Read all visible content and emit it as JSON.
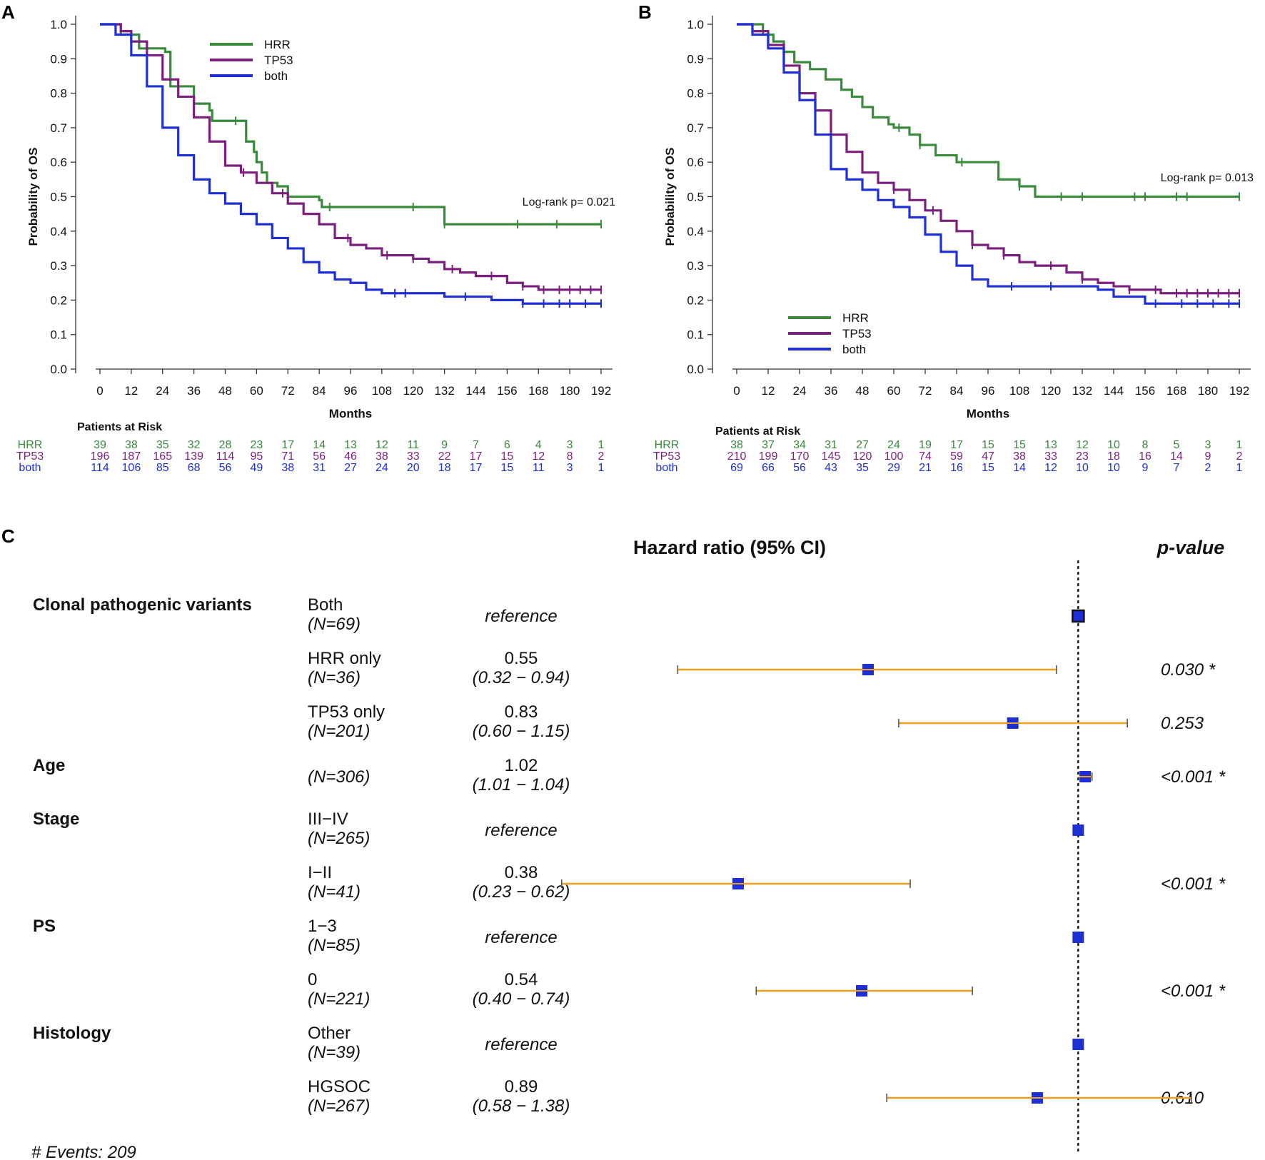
{
  "panels": {
    "a": "A",
    "b": "B",
    "c": "C"
  },
  "chart_data": [
    {
      "type": "line",
      "panel": "A",
      "title": "",
      "xlabel": "Months",
      "ylabel": "Probability of OS",
      "xlim": [
        0,
        192
      ],
      "ylim": [
        0,
        1
      ],
      "xticks": [
        "0",
        "12",
        "24",
        "36",
        "48",
        "60",
        "72",
        "84",
        "96",
        "108",
        "120",
        "132",
        "144",
        "156",
        "168",
        "180",
        "192"
      ],
      "yticks": [
        "0.0",
        "0.1",
        "0.2",
        "0.3",
        "0.4",
        "0.5",
        "0.6",
        "0.7",
        "0.8",
        "0.9",
        "1.0"
      ],
      "annotation": "Log-rank p= 0.021",
      "legend": [
        "HRR",
        "TP53",
        "both"
      ],
      "legend_position": "top-center",
      "series": [
        {
          "name": "HRR",
          "color": "#3a8a3c",
          "x": [
            0,
            3,
            8,
            15,
            25,
            27,
            36,
            36,
            42,
            43,
            50,
            56,
            59,
            60,
            62,
            64,
            67,
            68,
            72,
            73,
            84,
            85,
            88,
            96,
            132,
            150,
            192
          ],
          "y": [
            1.0,
            1.0,
            0.97,
            0.93,
            0.92,
            0.82,
            0.77,
            0.77,
            0.75,
            0.72,
            0.72,
            0.66,
            0.63,
            0.6,
            0.57,
            0.54,
            0.54,
            0.53,
            0.5,
            0.5,
            0.49,
            0.47,
            0.47,
            0.47,
            0.42,
            0.42,
            0.42
          ],
          "censor_x": [
            52,
            88,
            120,
            132,
            160,
            175,
            192
          ]
        },
        {
          "name": "TP53",
          "color": "#7b1f7d",
          "x": [
            0,
            8,
            12,
            18,
            24,
            30,
            36,
            42,
            48,
            54,
            60,
            66,
            72,
            78,
            84,
            90,
            96,
            102,
            108,
            114,
            120,
            126,
            132,
            138,
            144,
            150,
            156,
            162,
            168,
            174,
            180,
            186,
            192
          ],
          "y": [
            1.0,
            0.98,
            0.95,
            0.91,
            0.84,
            0.79,
            0.73,
            0.66,
            0.59,
            0.57,
            0.54,
            0.51,
            0.48,
            0.45,
            0.42,
            0.38,
            0.36,
            0.35,
            0.33,
            0.33,
            0.32,
            0.31,
            0.29,
            0.28,
            0.27,
            0.27,
            0.25,
            0.24,
            0.23,
            0.23,
            0.23,
            0.23,
            0.23
          ],
          "censor_x": [
            55,
            70,
            95,
            110,
            120,
            135,
            150,
            162,
            170,
            176,
            180,
            184,
            188,
            192
          ]
        },
        {
          "name": "both",
          "color": "#1f2fd6",
          "x": [
            0,
            6,
            12,
            18,
            24,
            30,
            36,
            42,
            48,
            54,
            60,
            66,
            72,
            78,
            84,
            90,
            96,
            102,
            108,
            114,
            120,
            126,
            132,
            138,
            144,
            150,
            156,
            162,
            168,
            174,
            180,
            186,
            192
          ],
          "y": [
            1.0,
            0.97,
            0.91,
            0.82,
            0.7,
            0.62,
            0.55,
            0.51,
            0.48,
            0.45,
            0.42,
            0.38,
            0.35,
            0.31,
            0.28,
            0.26,
            0.25,
            0.23,
            0.22,
            0.22,
            0.22,
            0.22,
            0.21,
            0.21,
            0.21,
            0.2,
            0.2,
            0.19,
            0.19,
            0.19,
            0.19,
            0.19,
            0.19
          ],
          "censor_x": [
            113,
            117,
            140,
            162,
            170,
            176,
            180,
            186,
            192
          ]
        }
      ],
      "risk_table": {
        "title": "Patients at Risk",
        "rows": [
          {
            "name": "HRR",
            "color": "#3a8a3c",
            "values": [
              "39",
              "38",
              "35",
              "32",
              "28",
              "23",
              "17",
              "14",
              "13",
              "12",
              "11",
              "9",
              "7",
              "6",
              "4",
              "3",
              "1"
            ]
          },
          {
            "name": "TP53",
            "color": "#7b1f7d",
            "values": [
              "196",
              "187",
              "165",
              "139",
              "114",
              "95",
              "71",
              "56",
              "46",
              "38",
              "33",
              "22",
              "17",
              "15",
              "12",
              "8",
              "2"
            ]
          },
          {
            "name": "both",
            "color": "#1f2fd6",
            "values": [
              "114",
              "106",
              "85",
              "68",
              "56",
              "49",
              "38",
              "31",
              "27",
              "24",
              "20",
              "18",
              "17",
              "15",
              "11",
              "3",
              "1"
            ]
          }
        ]
      }
    },
    {
      "type": "line",
      "panel": "B",
      "title": "",
      "xlabel": "Months",
      "ylabel": "Probability of OS",
      "xlim": [
        0,
        192
      ],
      "ylim": [
        0,
        1
      ],
      "xticks": [
        "0",
        "12",
        "24",
        "36",
        "48",
        "60",
        "72",
        "84",
        "96",
        "108",
        "120",
        "132",
        "144",
        "156",
        "168",
        "180",
        "192"
      ],
      "yticks": [
        "0.0",
        "0.1",
        "0.2",
        "0.3",
        "0.4",
        "0.5",
        "0.6",
        "0.7",
        "0.8",
        "0.9",
        "1.0"
      ],
      "annotation": "Log-rank p= 0.013",
      "legend": [
        "HRR",
        "TP53",
        "both"
      ],
      "legend_position": "bottom-left",
      "series": [
        {
          "name": "HRR",
          "color": "#3a8a3c",
          "x": [
            0,
            10,
            14,
            18,
            22,
            28,
            34,
            40,
            44,
            48,
            52,
            58,
            60,
            66,
            70,
            76,
            84,
            94,
            100,
            108,
            114,
            120,
            192
          ],
          "y": [
            1.0,
            0.97,
            0.95,
            0.92,
            0.89,
            0.87,
            0.84,
            0.81,
            0.79,
            0.76,
            0.73,
            0.71,
            0.7,
            0.68,
            0.65,
            0.62,
            0.6,
            0.6,
            0.55,
            0.53,
            0.5,
            0.5,
            0.5
          ],
          "censor_x": [
            62,
            70,
            86,
            108,
            124,
            132,
            152,
            156,
            168,
            172,
            192
          ]
        },
        {
          "name": "TP53",
          "color": "#7b1f7d",
          "x": [
            0,
            6,
            12,
            18,
            24,
            30,
            36,
            42,
            48,
            54,
            60,
            66,
            72,
            78,
            84,
            90,
            96,
            102,
            108,
            114,
            120,
            126,
            132,
            138,
            144,
            150,
            156,
            162,
            168,
            174,
            180,
            186,
            192
          ],
          "y": [
            1.0,
            0.98,
            0.94,
            0.88,
            0.8,
            0.75,
            0.68,
            0.63,
            0.57,
            0.54,
            0.52,
            0.49,
            0.46,
            0.43,
            0.4,
            0.36,
            0.35,
            0.33,
            0.31,
            0.3,
            0.3,
            0.28,
            0.26,
            0.25,
            0.24,
            0.23,
            0.23,
            0.22,
            0.22,
            0.22,
            0.22,
            0.22,
            0.22
          ],
          "censor_x": [
            60,
            75,
            90,
            102,
            120,
            132,
            150,
            160,
            168,
            172,
            176,
            180,
            184,
            188,
            192
          ]
        },
        {
          "name": "both",
          "color": "#1f2fd6",
          "x": [
            0,
            6,
            12,
            18,
            24,
            30,
            36,
            42,
            48,
            54,
            60,
            66,
            72,
            78,
            84,
            90,
            96,
            102,
            108,
            114,
            120,
            126,
            132,
            138,
            144,
            150,
            156,
            162,
            168,
            174,
            180,
            186,
            192
          ],
          "y": [
            1.0,
            0.97,
            0.93,
            0.86,
            0.78,
            0.68,
            0.58,
            0.55,
            0.52,
            0.49,
            0.47,
            0.44,
            0.39,
            0.34,
            0.3,
            0.26,
            0.24,
            0.24,
            0.24,
            0.24,
            0.24,
            0.24,
            0.24,
            0.23,
            0.21,
            0.21,
            0.19,
            0.19,
            0.19,
            0.19,
            0.19,
            0.19,
            0.19
          ],
          "censor_x": [
            105,
            120,
            160,
            170,
            176,
            182,
            188,
            192
          ]
        }
      ],
      "risk_table": {
        "title": "Patients at Risk",
        "rows": [
          {
            "name": "HRR",
            "color": "#3a8a3c",
            "values": [
              "38",
              "37",
              "34",
              "31",
              "27",
              "24",
              "19",
              "17",
              "15",
              "15",
              "13",
              "12",
              "10",
              "8",
              "5",
              "3",
              "1"
            ]
          },
          {
            "name": "TP53",
            "color": "#7b1f7d",
            "values": [
              "210",
              "199",
              "170",
              "145",
              "120",
              "100",
              "74",
              "59",
              "47",
              "38",
              "33",
              "23",
              "18",
              "16",
              "14",
              "9",
              "2"
            ]
          },
          {
            "name": "both",
            "color": "#1f2fd6",
            "values": [
              "69",
              "66",
              "56",
              "43",
              "35",
              "29",
              "21",
              "16",
              "15",
              "14",
              "12",
              "10",
              "10",
              "9",
              "7",
              "2",
              "1"
            ]
          }
        ]
      }
    },
    {
      "type": "forest",
      "panel": "C",
      "title": "Hazard ratio (95% CI)",
      "pvalue_title": "p-value",
      "footer": "# Events: 209",
      "reference_line": 1.0,
      "x_scale": "log",
      "xlim": [
        0.2,
        1.5
      ],
      "rows": [
        {
          "variable": "Clonal pathogenic variants",
          "level": "Both",
          "n": "(N=69)",
          "hr_text": "reference",
          "ci_text": "",
          "p": "",
          "hr": 1.0,
          "lo": null,
          "hi": null,
          "ref": true
        },
        {
          "variable": "",
          "level": "HRR only",
          "n": "(N=36)",
          "hr_text": "0.55",
          "ci_text": "(0.32 − 0.94)",
          "p": "0.030 *",
          "hr": 0.55,
          "lo": 0.32,
          "hi": 0.94,
          "ref": false
        },
        {
          "variable": "",
          "level": "TP53 only",
          "n": "(N=201)",
          "hr_text": "0.83",
          "ci_text": "(0.60 − 1.15)",
          "p": "0.253",
          "hr": 0.83,
          "lo": 0.6,
          "hi": 1.15,
          "ref": false
        },
        {
          "variable": "Age",
          "level": "",
          "n": "(N=306)",
          "hr_text": "1.02",
          "ci_text": "(1.01 − 1.04)",
          "p": "<0.001 *",
          "hr": 1.02,
          "lo": 1.01,
          "hi": 1.04,
          "ref": false
        },
        {
          "variable": "Stage",
          "level": "III−IV",
          "n": "(N=265)",
          "hr_text": "reference",
          "ci_text": "",
          "p": "",
          "hr": 1.0,
          "lo": null,
          "hi": null,
          "ref": true
        },
        {
          "variable": "",
          "level": "I−II",
          "n": "(N=41)",
          "hr_text": "0.38",
          "ci_text": "(0.23 − 0.62)",
          "p": "<0.001 *",
          "hr": 0.38,
          "lo": 0.23,
          "hi": 0.62,
          "ref": false
        },
        {
          "variable": "PS",
          "level": "1−3",
          "n": "(N=85)",
          "hr_text": "reference",
          "ci_text": "",
          "p": "",
          "hr": 1.0,
          "lo": null,
          "hi": null,
          "ref": true
        },
        {
          "variable": "",
          "level": "0",
          "n": "(N=221)",
          "hr_text": "0.54",
          "ci_text": "(0.40 − 0.74)",
          "p": "<0.001 *",
          "hr": 0.54,
          "lo": 0.4,
          "hi": 0.74,
          "ref": false
        },
        {
          "variable": "Histology",
          "level": "Other",
          "n": "(N=39)",
          "hr_text": "reference",
          "ci_text": "",
          "p": "",
          "hr": 1.0,
          "lo": null,
          "hi": null,
          "ref": true
        },
        {
          "variable": "",
          "level": "HGSOC",
          "n": "(N=267)",
          "hr_text": "0.89",
          "ci_text": "(0.58 − 1.38)",
          "p": "0.610",
          "hr": 0.89,
          "lo": 0.58,
          "hi": 1.38,
          "ref": false
        }
      ]
    }
  ],
  "colors": {
    "hrr": "#3a8a3c",
    "tp53": "#7b1f7d",
    "both": "#1f2fd6",
    "ci": "#f0a020",
    "box": "#1f2fd6"
  }
}
